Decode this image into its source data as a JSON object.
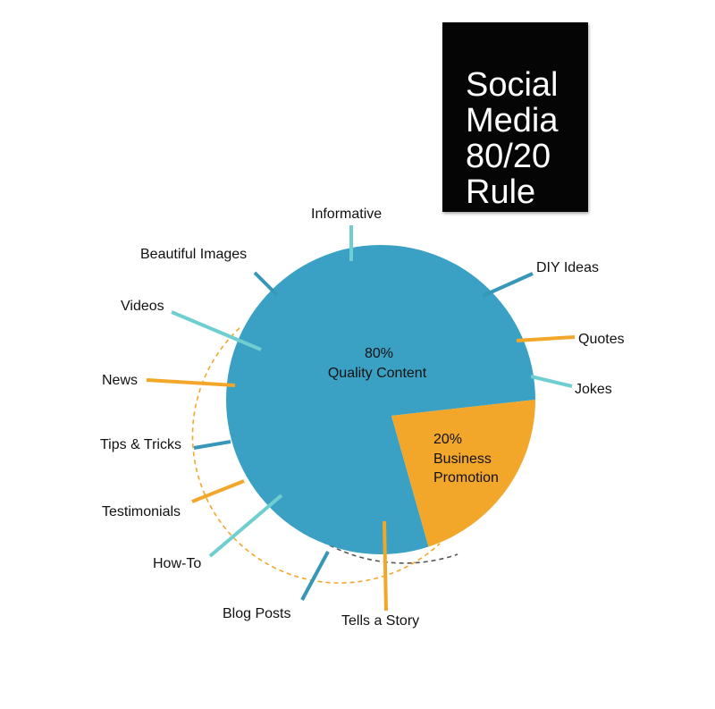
{
  "title": {
    "lines": [
      "Social",
      "Media",
      "80/20",
      "Rule"
    ]
  },
  "colors": {
    "quality": "#3aa1c4",
    "promotion": "#f2a72a",
    "spoke_teal": "#6fcfd0",
    "spoke_blue": "#3797b8",
    "spoke_orange": "#f2a72a",
    "arc_dark": "#555555",
    "arc_orange": "#f2a72a"
  },
  "chart_data": {
    "type": "pie",
    "slices": [
      {
        "name": "Quality Content",
        "percent_label": "80%",
        "value": 80,
        "color": "#3aa1c4"
      },
      {
        "name": "Business Promotion",
        "percent_label": "20%",
        "value": 20,
        "color": "#f2a72a"
      }
    ],
    "slice_labels": {
      "quality": [
        "80%",
        "Quality Content"
      ],
      "promotion": [
        "20%",
        "Business",
        "Promotion"
      ]
    },
    "annotations": [
      {
        "text": "Informative",
        "color": "teal"
      },
      {
        "text": "DIY Ideas",
        "color": "blue"
      },
      {
        "text": "Quotes",
        "color": "orange"
      },
      {
        "text": "Jokes",
        "color": "teal"
      },
      {
        "text": "Tells a Story",
        "color": "orange"
      },
      {
        "text": "Blog Posts",
        "color": "blue"
      },
      {
        "text": "How-To",
        "color": "teal"
      },
      {
        "text": "Testimonials",
        "color": "orange"
      },
      {
        "text": "Tips & Tricks",
        "color": "blue"
      },
      {
        "text": "News",
        "color": "orange"
      },
      {
        "text": "Videos",
        "color": "teal"
      },
      {
        "text": "Beautiful Images",
        "color": "blue"
      }
    ]
  }
}
